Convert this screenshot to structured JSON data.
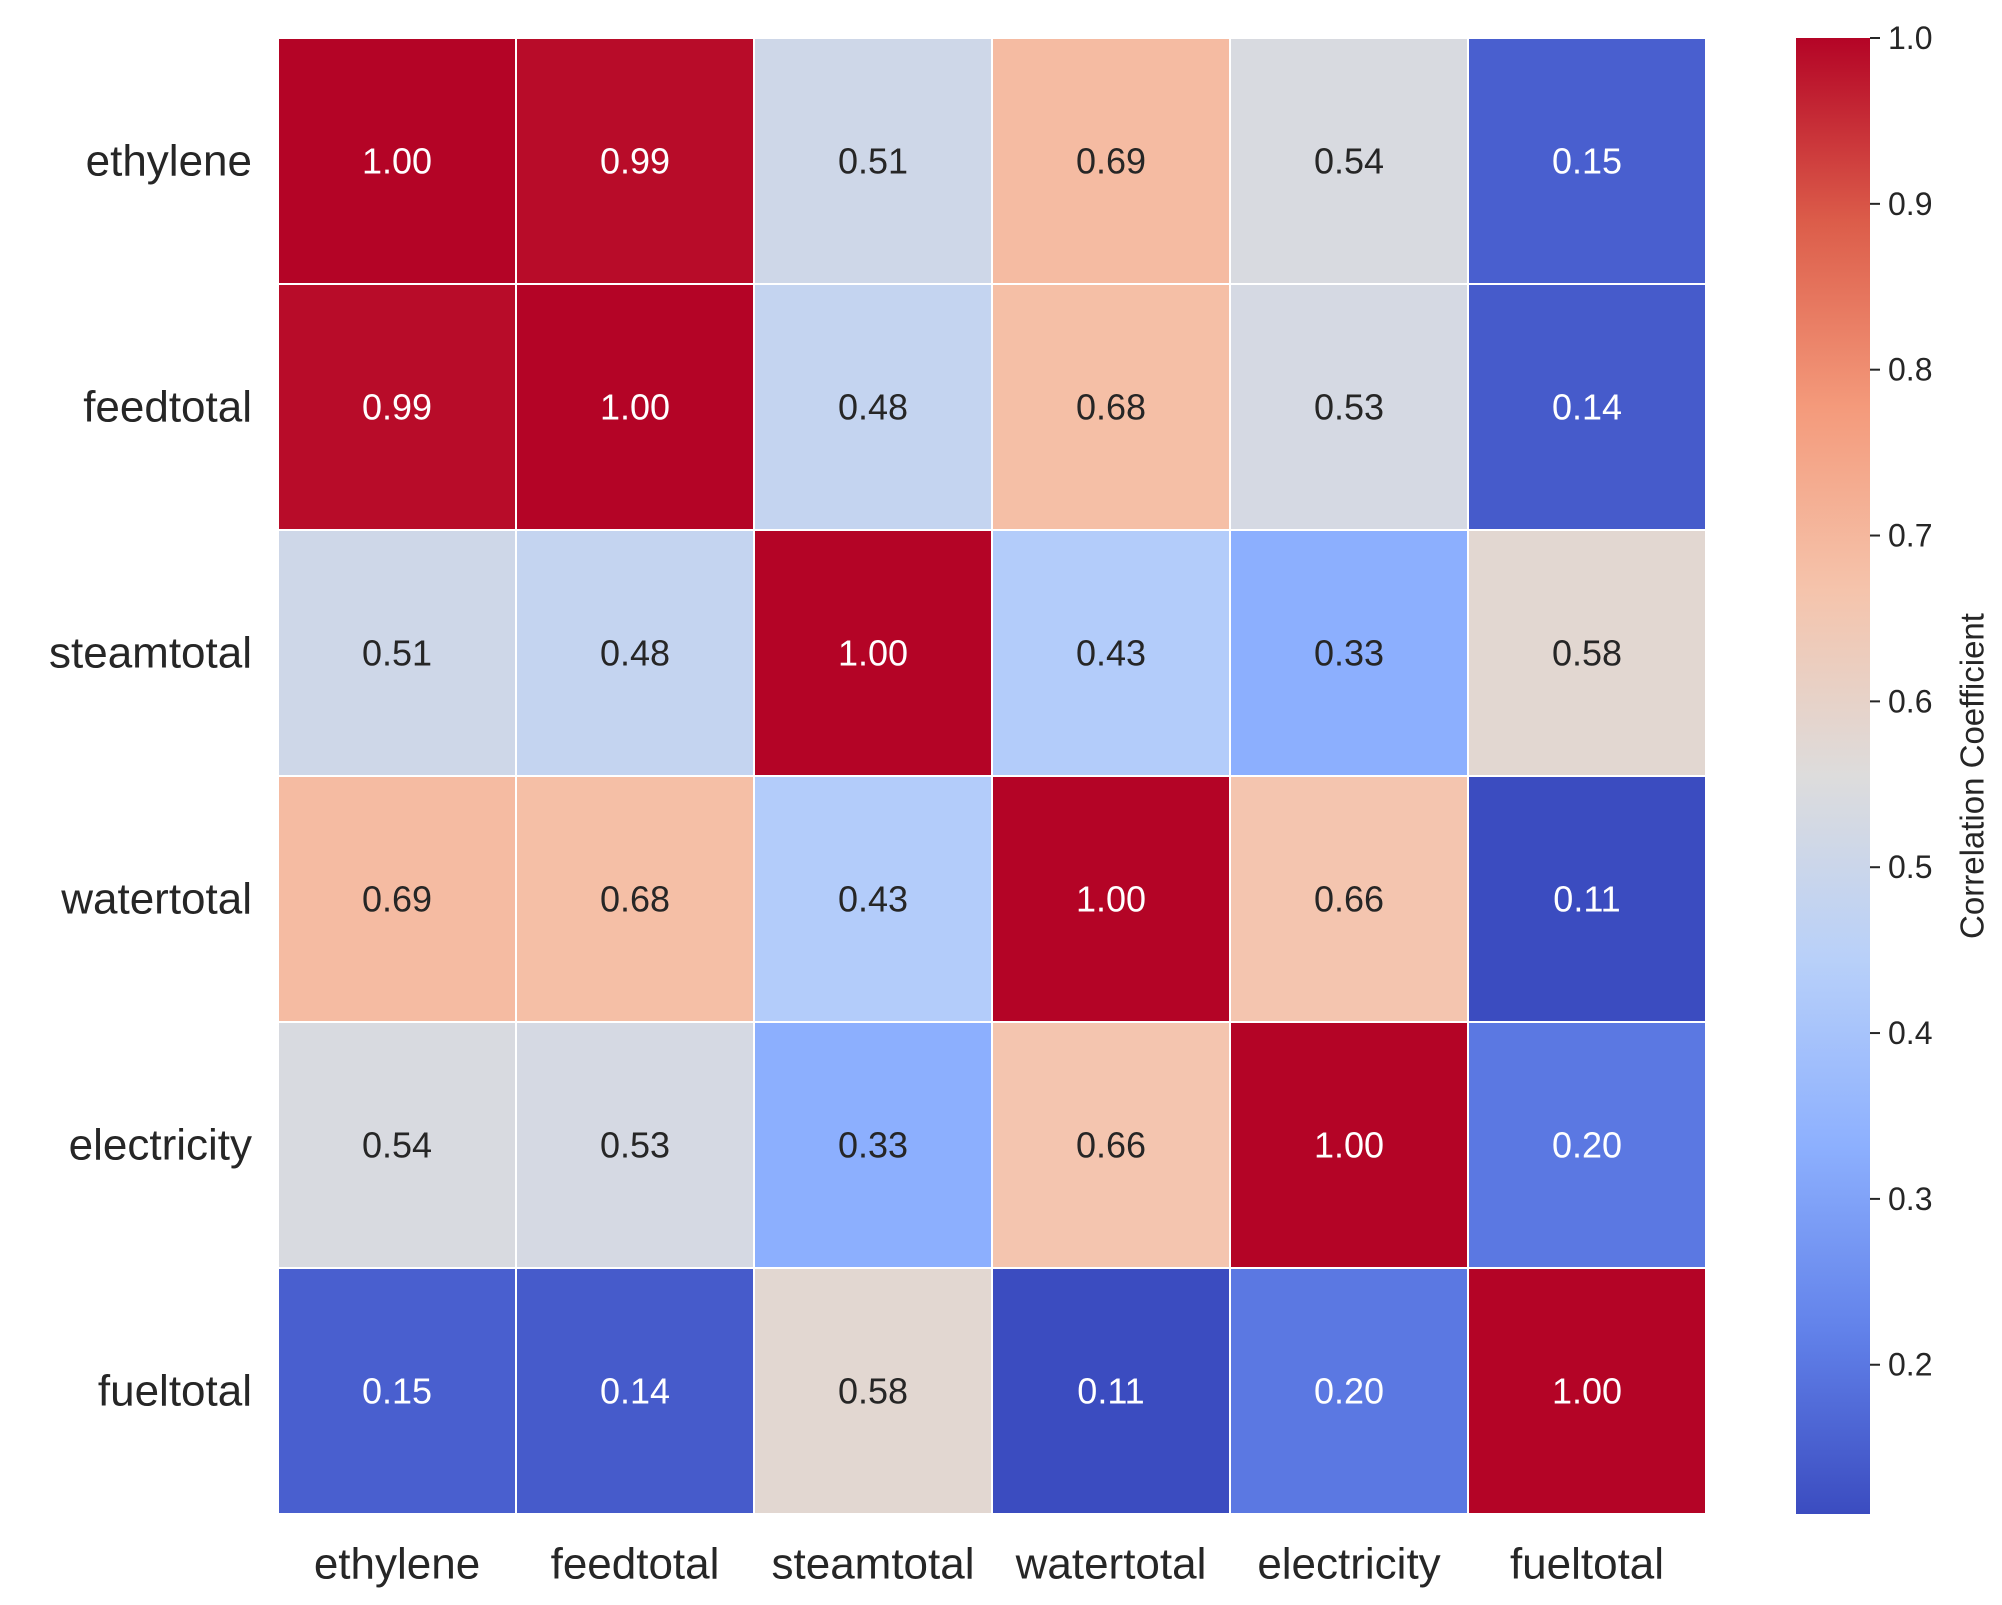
{
  "chart_data": {
    "type": "heatmap",
    "title": "",
    "rows": [
      "ethylene",
      "feedtotal",
      "steamtotal",
      "watertotal",
      "electricity",
      "fueltotal"
    ],
    "columns": [
      "ethylene",
      "feedtotal",
      "steamtotal",
      "watertotal",
      "electricity",
      "fueltotal"
    ],
    "values": [
      [
        1.0,
        0.99,
        0.51,
        0.69,
        0.54,
        0.15
      ],
      [
        0.99,
        1.0,
        0.48,
        0.68,
        0.53,
        0.14
      ],
      [
        0.51,
        0.48,
        1.0,
        0.43,
        0.33,
        0.58
      ],
      [
        0.69,
        0.68,
        0.43,
        1.0,
        0.66,
        0.11
      ],
      [
        0.54,
        0.53,
        0.33,
        0.66,
        1.0,
        0.2
      ],
      [
        0.15,
        0.14,
        0.58,
        0.11,
        0.2,
        1.0
      ]
    ],
    "value_format": "0.00",
    "colormap": "coolwarm",
    "colorbar": {
      "label": "Correlation Coefficient",
      "vmin": 0.11,
      "vmax": 1.0,
      "ticks": [
        0.2,
        0.3,
        0.4,
        0.5,
        0.6,
        0.7,
        0.8,
        0.9,
        1.0
      ],
      "tick_labels": [
        "0.2",
        "0.3",
        "0.4",
        "0.5",
        "0.6",
        "0.7",
        "0.8",
        "0.9",
        "1.0"
      ],
      "placement": "right"
    },
    "colors": {
      "cell_border": "#ffffff",
      "text_dark": "#262626",
      "text_light": "#ffffff",
      "colormap_stops": [
        "#3b4cc0",
        "#6282ea",
        "#8db0fe",
        "#b8d0f9",
        "#dddcdc",
        "#f5c4ac",
        "#f49a7b",
        "#dc5d4a",
        "#b40426"
      ]
    }
  }
}
